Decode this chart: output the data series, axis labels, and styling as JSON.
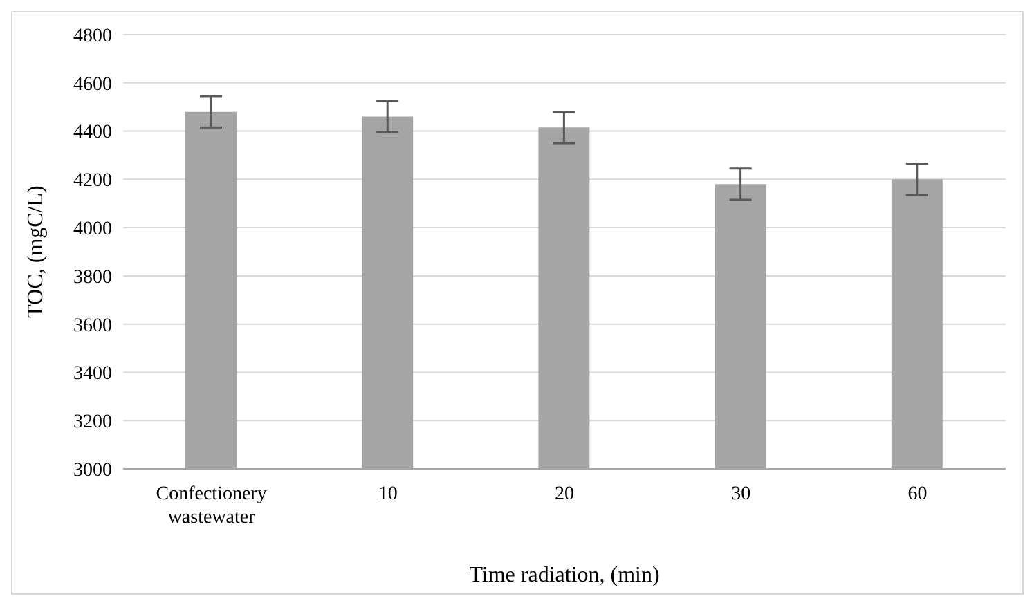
{
  "chart_data": {
    "type": "bar",
    "xlabel": "Time radiation, (min)",
    "ylabel": "TOC, (mgC/L)",
    "categories": [
      "Confectionery wastewater",
      "10",
      "20",
      "30",
      "60"
    ],
    "values": [
      4480,
      4460,
      4415,
      4180,
      4200
    ],
    "errors": [
      65,
      65,
      65,
      65,
      65
    ],
    "color": "#a5a5a5",
    "ylim": [
      3000,
      4800
    ],
    "yticks": [
      3000,
      3200,
      3400,
      3600,
      3800,
      4000,
      4200,
      4400,
      4600,
      4800
    ],
    "grid": "y"
  }
}
